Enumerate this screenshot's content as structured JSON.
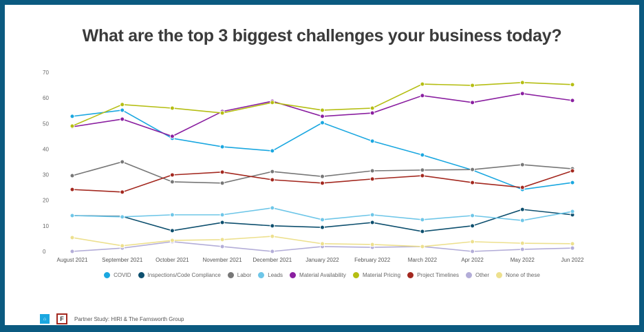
{
  "chart_data": {
    "type": "line",
    "title": "What are the top 3 biggest challenges your business today?",
    "categories": [
      "August 2021",
      "September 2021",
      "October 2021",
      "November 2021",
      "December 2021",
      "January 2022",
      "February 2022",
      "March 2022",
      "Apr 2022",
      "May 2022",
      "Jun 2022"
    ],
    "ylim": [
      0,
      70
    ],
    "yticks": [
      0,
      10,
      20,
      30,
      40,
      50,
      60,
      70
    ],
    "grid": false,
    "legend_position": "bottom",
    "series": [
      {
        "name": "COVID",
        "color": "#1aa7e0",
        "values": [
          52.8,
          55.2,
          44.2,
          40.9,
          39.3,
          50.3,
          43.1,
          37.7,
          31.8,
          24.2,
          26.9
        ]
      },
      {
        "name": "Inspections/Code Compliance",
        "color": "#0d4f6e",
        "values": [
          14,
          13.7,
          8.1,
          11.3,
          10,
          9.4,
          11.3,
          7.8,
          10,
          16.4,
          14.3
        ]
      },
      {
        "name": "Labor",
        "color": "#777777",
        "values": [
          29.6,
          35,
          27.2,
          26.7,
          31.2,
          29.3,
          31.5,
          31.8,
          32,
          33.9,
          32.3
        ]
      },
      {
        "name": "Leads",
        "color": "#6ec6e8",
        "values": [
          14,
          13.5,
          14.3,
          14.3,
          17,
          12.4,
          14.3,
          12.4,
          14,
          12.1,
          15.6
        ]
      },
      {
        "name": "Material Availability",
        "color": "#8a1fa0",
        "values": [
          48.7,
          51.7,
          45,
          54.7,
          58.7,
          52.8,
          54.1,
          60.9,
          58.2,
          61.7,
          59
        ]
      },
      {
        "name": "Material Pricing",
        "color": "#b5be13",
        "values": [
          49,
          57.4,
          56,
          54.1,
          58.2,
          55.2,
          56,
          65.4,
          64.9,
          66,
          65.2
        ]
      },
      {
        "name": "Project Timelines",
        "color": "#a3281f",
        "values": [
          24.2,
          23.2,
          29.9,
          31,
          28,
          26.7,
          28.3,
          29.6,
          26.9,
          25,
          31.5
        ]
      },
      {
        "name": "Other",
        "color": "#b3add8",
        "values": [
          0,
          1.3,
          3.8,
          1.9,
          0,
          1.9,
          1.6,
          1.9,
          0,
          0.8,
          1.3
        ]
      },
      {
        "name": "None of these",
        "color": "#ede08e",
        "values": [
          5.4,
          2.2,
          4.3,
          4.6,
          5.9,
          3,
          2.7,
          1.9,
          3.8,
          3.2,
          3
        ]
      }
    ]
  },
  "footer": {
    "text": "Partner Study:  HIRI & The Farnsworth Group",
    "logo1": "HIRI",
    "logo2": "F"
  }
}
